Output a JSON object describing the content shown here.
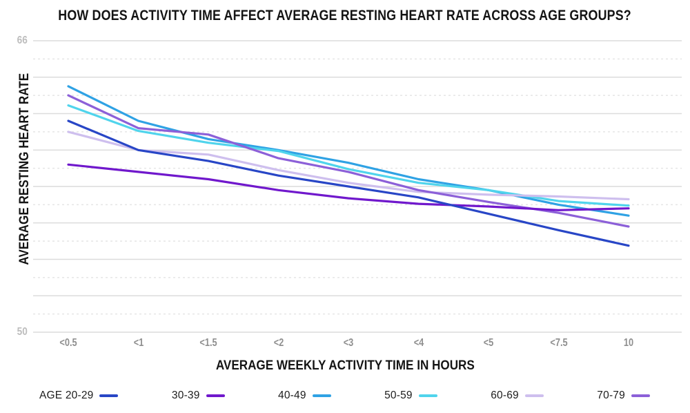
{
  "title": "HOW DOES ACTIVITY TIME AFFECT AVERAGE RESTING HEART RATE ACROSS AGE GROUPS?",
  "chart_data": {
    "type": "line",
    "title": "HOW DOES ACTIVITY TIME AFFECT AVERAGE RESTING HEART RATE ACROSS AGE GROUPS?",
    "xlabel": "AVERAGE WEEKLY ACTIVITY TIME IN HOURS",
    "ylabel": "AVERAGE RESTING HEART RATE",
    "categories": [
      "<0.5",
      "<1",
      "<1.5",
      "<2",
      "<3",
      "<4",
      "<5",
      "<7.5",
      "10"
    ],
    "y_axis": {
      "min": 50,
      "max": 66,
      "shown_labels": [
        "66",
        "50"
      ],
      "gridline_step": 1,
      "grid_style": "horizontal lines, solid at even values, dashed at odd values"
    },
    "legend_position": "bottom",
    "series": [
      {
        "name": "AGE 20-29",
        "color": "#2846C6",
        "values": [
          61.6,
          60.0,
          59.4,
          58.6,
          58.0,
          57.4,
          56.5,
          55.6,
          54.75
        ]
      },
      {
        "name": "30-39",
        "color": "#7018CC",
        "values": [
          59.2,
          58.8,
          58.4,
          57.8,
          57.35,
          57.05,
          56.9,
          56.7,
          56.8
        ]
      },
      {
        "name": "40-49",
        "color": "#2FA2E4",
        "values": [
          63.5,
          61.6,
          60.6,
          60.0,
          59.3,
          58.4,
          57.8,
          57.0,
          56.4
        ]
      },
      {
        "name": "50-59",
        "color": "#50D4EC",
        "values": [
          62.45,
          61.05,
          60.4,
          59.95,
          58.95,
          58.2,
          57.8,
          57.2,
          56.95
        ]
      },
      {
        "name": "60-69",
        "color": "#CEBFEE",
        "values": [
          61.0,
          60.0,
          59.75,
          58.9,
          58.2,
          57.7,
          57.55,
          57.45,
          57.3
        ]
      },
      {
        "name": "70-79",
        "color": "#8C60D8",
        "values": [
          63.0,
          61.2,
          60.85,
          59.55,
          58.8,
          57.8,
          57.15,
          56.55,
          55.8
        ]
      }
    ]
  }
}
